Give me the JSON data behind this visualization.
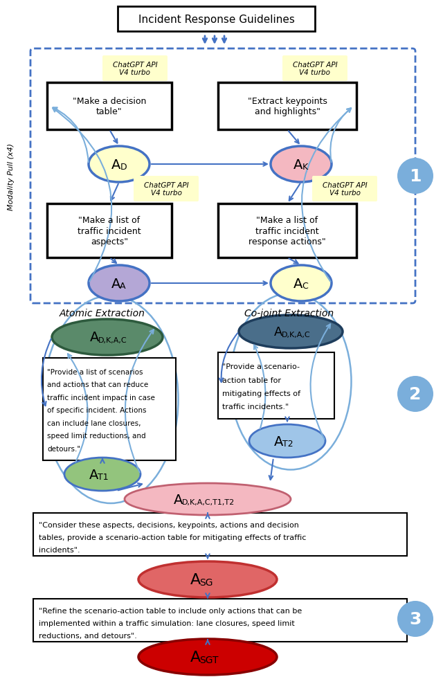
{
  "title": "Incident Response Guidelines",
  "bg_color": "#ffffff",
  "arrow_color": "#4472c4",
  "light_arrow_color": "#7aaedb",
  "dashed_box_color": "#4472c4",
  "step_circle_color": "#7aaedb",
  "chatgpt_bg": "#ffffcc",
  "box_top_left_text": "\"Make a decision\ntable\"",
  "box_top_right_text": "\"Extract keypoints\nand highlights\"",
  "box_bot_left_text": "\"Make a list of\ntraffic incident\naspects\"",
  "box_bot_right_text": "\"Make a list of\ntraffic incident\nresponse actions\"",
  "AD_color": "#ffffcc",
  "AK_color": "#f4b8c1",
  "AA_color": "#b4a7d6",
  "AC_color": "#ffffcc",
  "atomic_oval_color": "#5a8a6a",
  "cojoint_oval_color": "#4a6e8a",
  "AT1_color": "#93c47d",
  "AT2_color": "#9fc5e8",
  "ADKACT1T2_color": "#f4b8c1",
  "ASG_color": "#e06666",
  "ASGT_color": "#cc0000",
  "modality_label": "Modality Pull (x4)",
  "atomic_label": "Atomic Extraction",
  "cojoint_label": "Co-joint Extraction",
  "chatgpt_text": "ChatGPT API\nV4 turbo",
  "prompt_atomic_1": "\"Provide a list of scenarios",
  "prompt_atomic_2": "and actions that can reduce",
  "prompt_atomic_3": "traffic incident impact in case",
  "prompt_atomic_4": "of specific incident. Actions",
  "prompt_atomic_5": "can include lane closures,",
  "prompt_atomic_6": "speed limit reductions, and",
  "prompt_atomic_7": "detours.\"",
  "prompt_cojoint_1": "\"Provide a scenario-",
  "prompt_cojoint_2": "action table for",
  "prompt_cojoint_3": "mitigating effects of",
  "prompt_cojoint_4": "traffic incidents.\"",
  "prompt_final_1": "\"Consider these aspects, decisions, keypoints, actions and decision",
  "prompt_final_2": "tables, provide a scenario-action table for mitigating effects of traffic",
  "prompt_final_3": "incidents\".",
  "prompt_refine_1": "\"Refine the scenario-action table to include only actions that can be",
  "prompt_refine_2": "implemented within a traffic simulation: lane closures, speed limit",
  "prompt_refine_3": "reductions, and detours\"."
}
